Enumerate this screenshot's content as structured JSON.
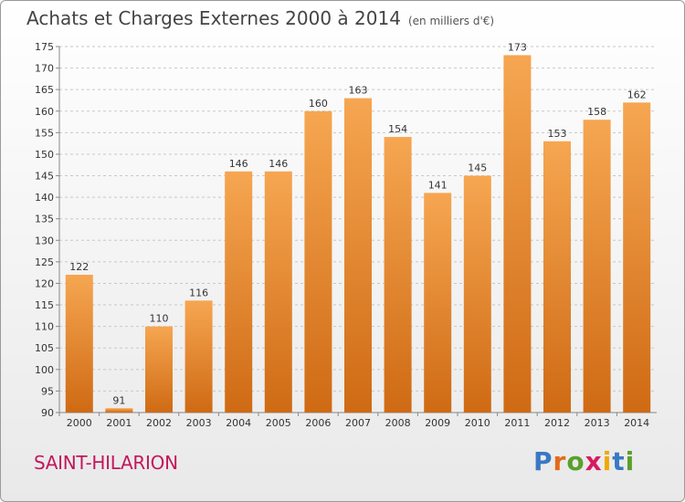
{
  "title": "Achats et Charges Externes 2000 à 2014",
  "subtitle": "(en milliers d'€)",
  "location": "SAINT-HILARION",
  "logo": {
    "text": "Proxiti",
    "letters": [
      "P",
      "r",
      "o",
      "x",
      "i",
      "t",
      "i"
    ],
    "colors": [
      "#3a78c4",
      "#e26a1b",
      "#5aa02c",
      "#d81b60",
      "#f0a800",
      "#3a78c4",
      "#5aa02c"
    ]
  },
  "colors": {
    "bar_light": "#f6a651",
    "bar_dark": "#cf6a14",
    "grid": "#c8c8c8",
    "axis": "#888888"
  },
  "chart_data": {
    "type": "bar",
    "categories": [
      "2000",
      "2001",
      "2002",
      "2003",
      "2004",
      "2005",
      "2006",
      "2007",
      "2008",
      "2009",
      "2010",
      "2011",
      "2012",
      "2013",
      "2014"
    ],
    "values": [
      122,
      91,
      110,
      116,
      146,
      146,
      160,
      163,
      154,
      141,
      145,
      173,
      153,
      158,
      162
    ],
    "ylim": [
      90,
      175
    ],
    "yticks": [
      90,
      95,
      100,
      105,
      110,
      115,
      120,
      125,
      130,
      135,
      140,
      145,
      150,
      155,
      160,
      165,
      170,
      175
    ],
    "grid": true
  }
}
